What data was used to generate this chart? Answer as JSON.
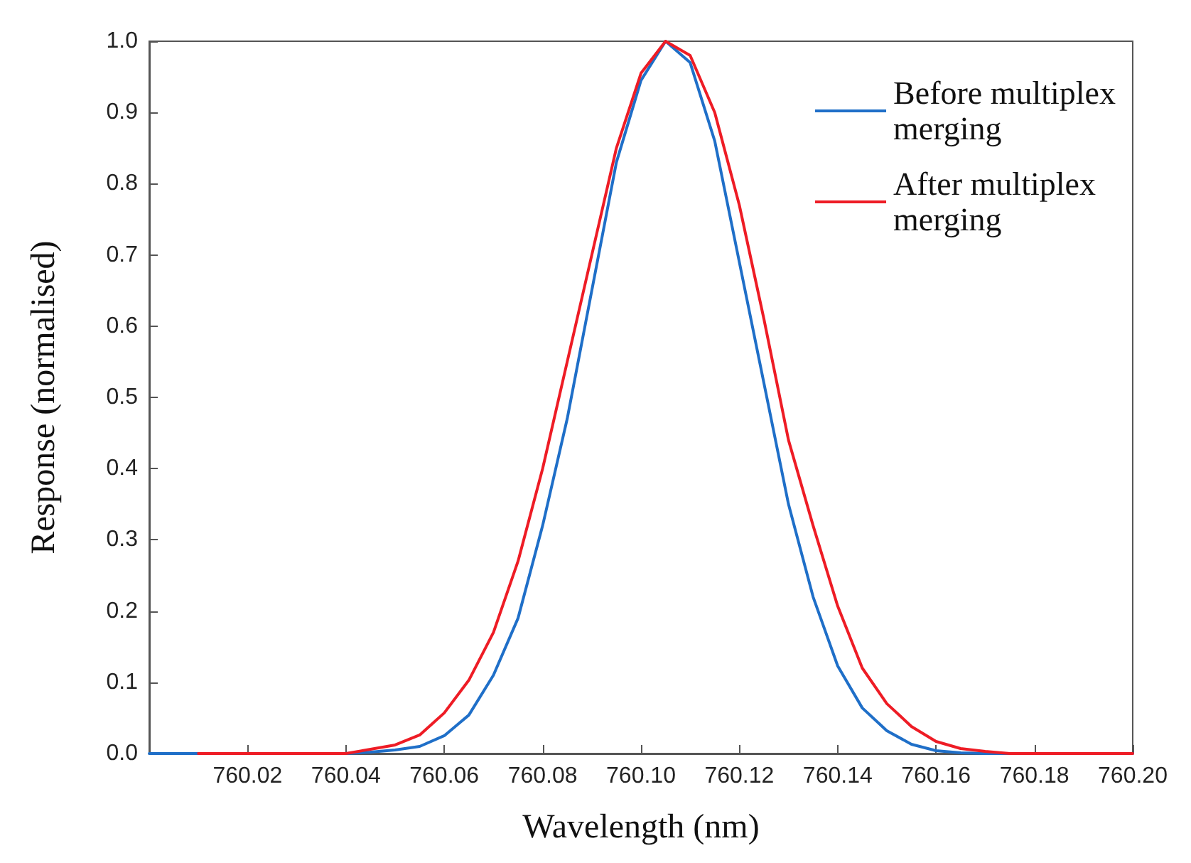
{
  "chart_data": {
    "type": "line",
    "xlabel": "Wavelength (nm)",
    "ylabel": "Response (normalised)",
    "xlim": [
      760.0,
      760.2
    ],
    "xticks": [
      760.02,
      760.04,
      760.06,
      760.08,
      {
        "value": 760.1,
        "label": "760.10"
      },
      760.12,
      760.14,
      760.16,
      760.18,
      {
        "value": 760.2,
        "label": "760.20"
      }
    ],
    "ylim": [
      0,
      1
    ],
    "yticks": [
      {
        "value": 0,
        "label": "0.0"
      },
      0.1,
      0.2,
      0.3,
      0.4,
      0.5,
      0.6,
      0.7,
      0.8,
      0.9,
      {
        "value": 1,
        "label": "1.0"
      }
    ],
    "grid": false,
    "legend": "top right",
    "marker": "none",
    "line_style": "solid",
    "series": [
      {
        "name": "Before multiplex merging",
        "color": "#1f6fc8",
        "x": [
          760.0,
          760.04,
          760.045,
          760.05,
          760.055,
          760.06,
          760.065,
          760.07,
          760.075,
          760.08,
          760.085,
          760.09,
          760.095,
          760.1,
          760.105,
          760.11,
          760.115,
          760.12,
          760.125,
          760.13,
          760.135,
          760.14,
          760.145,
          760.15,
          760.155,
          760.16,
          760.165,
          760.17,
          760.2
        ],
        "values": [
          0,
          0,
          0.002,
          0.005,
          0.01,
          0.025,
          0.054,
          0.11,
          0.19,
          0.32,
          0.47,
          0.65,
          0.83,
          0.945,
          1,
          0.97,
          0.86,
          0.69,
          0.52,
          0.35,
          0.22,
          0.123,
          0.064,
          0.032,
          0.013,
          0.004,
          0.001,
          0,
          0
        ]
      },
      {
        "name": "After multiplex merging",
        "color": "#ee1c25",
        "x": [
          760.01,
          760.04,
          760.045,
          760.05,
          760.055,
          760.06,
          760.065,
          760.07,
          760.075,
          760.08,
          760.085,
          760.09,
          760.095,
          760.1,
          760.105,
          760.11,
          760.115,
          760.12,
          760.125,
          760.13,
          760.135,
          760.14,
          760.145,
          760.15,
          760.155,
          760.16,
          760.165,
          760.17,
          760.175,
          760.2
        ],
        "values": [
          0,
          0,
          0.006,
          0.012,
          0.026,
          0.057,
          0.103,
          0.17,
          0.27,
          0.4,
          0.55,
          0.7,
          0.85,
          0.955,
          1,
          0.98,
          0.9,
          0.77,
          0.61,
          0.44,
          0.32,
          0.207,
          0.12,
          0.07,
          0.038,
          0.017,
          0.007,
          0.003,
          0,
          0
        ]
      }
    ]
  }
}
